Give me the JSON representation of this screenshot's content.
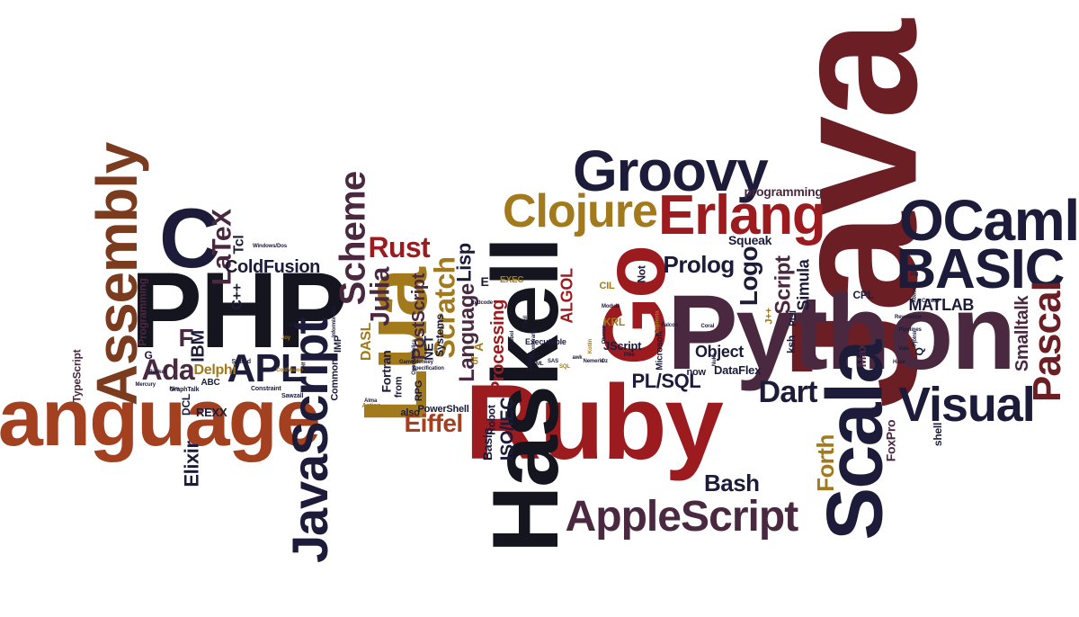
{
  "palette": {
    "navy": "#1c1b3a",
    "black": "#151520",
    "plum": "#4a2940",
    "crimson": "#9b1b1e",
    "rust": "#a3401f",
    "gold": "#a27a1c",
    "maroon": "#6b1f25",
    "brown": "#7a3b1f"
  },
  "words": [
    {
      "id": "java",
      "text": "Java",
      "color": "#6b1f25",
      "icon": "word"
    },
    {
      "id": "python",
      "text": "Python",
      "color": "#4a2940"
    },
    {
      "id": "ruby",
      "text": "Ruby",
      "color": "#9b1b1e"
    },
    {
      "id": "haskell",
      "text": "Haskell",
      "color": "#151520"
    },
    {
      "id": "php",
      "text": "PHP",
      "color": "#151520"
    },
    {
      "id": "go",
      "text": "Go",
      "color": "#9b1b1e"
    },
    {
      "id": "language",
      "text": "language",
      "color": "#a3401f"
    },
    {
      "id": "lua",
      "text": "Lua",
      "color": "#a27a1c"
    },
    {
      "id": "scala",
      "text": "Scala",
      "color": "#1c1b3a"
    },
    {
      "id": "groovy",
      "text": "Groovy",
      "color": "#1c1b3a"
    },
    {
      "id": "erlang",
      "text": "Erlang",
      "color": "#9b1b1e"
    },
    {
      "id": "clojure",
      "text": "Clojure",
      "color": "#a27a1c"
    },
    {
      "id": "ocaml",
      "text": "OCaml",
      "color": "#1c1b3a"
    },
    {
      "id": "basic",
      "text": "BASIC",
      "color": "#1c1b3a"
    },
    {
      "id": "assembly",
      "text": "Assembly",
      "color": "#7a3b1f"
    },
    {
      "id": "c",
      "text": "C",
      "color": "#1c1b3a"
    },
    {
      "id": "javascript",
      "text": "JavaScript",
      "color": "#1c1b3a"
    },
    {
      "id": "applescript",
      "text": "AppleScript",
      "color": "#4a2940"
    },
    {
      "id": "visual",
      "text": "Visual",
      "color": "#1c1b3a"
    },
    {
      "id": "pascal",
      "text": "Pascal",
      "color": "#6b1f25"
    },
    {
      "id": "scheme",
      "text": "Scheme",
      "color": "#4a2940"
    },
    {
      "id": "apl",
      "text": "APL",
      "color": "#1c1b3a"
    },
    {
      "id": "ada",
      "text": "Ada",
      "color": "#4a2940"
    },
    {
      "id": "dart",
      "text": "Dart",
      "color": "#1c1b3a"
    },
    {
      "id": "rust",
      "text": "Rust",
      "color": "#9b1b1e"
    },
    {
      "id": "julia",
      "text": "Julia",
      "color": "#4a2940"
    },
    {
      "id": "latex",
      "text": "LaTeX",
      "color": "#4a2940"
    },
    {
      "id": "scratch",
      "text": "Scratch",
      "color": "#a27a1c"
    },
    {
      "id": "language2",
      "text": "Language",
      "color": "#4a2940"
    },
    {
      "id": "logo",
      "text": "Logo",
      "color": "#1c1b3a"
    },
    {
      "id": "prolog",
      "text": "Prolog",
      "color": "#1c1b3a"
    },
    {
      "id": "eiffel",
      "text": "Eiffel",
      "color": "#a3401f"
    },
    {
      "id": "bash",
      "text": "Bash",
      "color": "#1c1b3a"
    },
    {
      "id": "forth",
      "text": "Forth",
      "color": "#a27a1c"
    },
    {
      "id": "script",
      "text": "Script",
      "color": "#4a2940"
    },
    {
      "id": "pl-sql",
      "text": "PL/SQL",
      "color": "#1c1b3a"
    },
    {
      "id": "lisp",
      "text": "Lisp",
      "color": "#1c1b3a"
    },
    {
      "id": "elixir",
      "text": "Elixir",
      "color": "#1c1b3a"
    },
    {
      "id": "processing",
      "text": "Processing",
      "color": "#9b1b1e"
    },
    {
      "id": "smalltalk",
      "text": "Smalltalk",
      "color": "#4a2940"
    },
    {
      "id": "postscript",
      "text": "PostScript",
      "color": "#4a2940"
    },
    {
      "id": "coldfusion",
      "text": "ColdFusion",
      "color": "#1c1b3a"
    },
    {
      "id": "simula",
      "text": "Simula",
      "color": "#1c1b3a"
    },
    {
      "id": "matlab",
      "text": "MATLAB",
      "color": "#1c1b3a"
    },
    {
      "id": "object",
      "text": "Object",
      "color": "#1c1b3a"
    },
    {
      "id": "programming",
      "text": "programming",
      "color": "#4a2940"
    },
    {
      "id": "squeak",
      "text": "Squeak",
      "color": "#1c1b3a"
    },
    {
      "id": "ibm",
      "text": "IBM",
      "color": "#1c1b3a"
    },
    {
      "id": "f",
      "text": "F",
      "color": "#4a2940"
    },
    {
      "id": "delphi",
      "text": "Delphi",
      "color": "#a27a1c"
    },
    {
      "id": "rexx",
      "text": "REXX",
      "color": "#1c1b3a"
    },
    {
      "id": "tcl",
      "text": "Tcl",
      "color": "#1c1b3a"
    },
    {
      "id": "cpp",
      "text": "C++",
      "color": "#1c1b3a"
    },
    {
      "id": "typescript",
      "text": "TypeScript",
      "color": "#4a2940"
    },
    {
      "id": "programming2",
      "text": "Programming",
      "color": "#4a2940"
    },
    {
      "id": "fortran",
      "text": "Fortran",
      "color": "#1c1b3a"
    },
    {
      "id": "net",
      "text": "NET",
      "color": "#1c1b3a"
    },
    {
      "id": "iso-iec",
      "text": "ISO/IEC",
      "color": "#1c1b3a"
    },
    {
      "id": "algol",
      "text": "ALGOL",
      "color": "#9b1b1e"
    },
    {
      "id": "robot",
      "text": "Robot",
      "color": "#1c1b3a"
    },
    {
      "id": "basic2",
      "text": "Basic",
      "color": "#1c1b3a"
    },
    {
      "id": "systems",
      "text": "Systems",
      "color": "#1c1b3a"
    },
    {
      "id": "dasl",
      "text": "DASL",
      "color": "#a27a1c"
    },
    {
      "id": "jscript",
      "text": "JScript",
      "color": "#1c1b3a"
    },
    {
      "id": "dataflex",
      "text": "DataFlex",
      "color": "#1c1b3a"
    },
    {
      "id": "foxpro",
      "text": "FoxPro",
      "color": "#4a2940"
    },
    {
      "id": "ksh",
      "text": "ksh",
      "color": "#1c1b3a"
    },
    {
      "id": "max",
      "text": "Max",
      "color": "#4a2940"
    },
    {
      "id": "shell",
      "text": "shell",
      "color": "#1c1b3a"
    },
    {
      "id": "cpl",
      "text": "CPL",
      "color": "#1c1b3a"
    },
    {
      "id": "pl-i",
      "text": "PL/I",
      "color": "#1c1b3a"
    },
    {
      "id": "kql",
      "text": "KRL",
      "color": "#a27a1c"
    },
    {
      "id": "cil",
      "text": "CIL",
      "color": "#a27a1c"
    },
    {
      "id": "exec",
      "text": "EXEC",
      "color": "#a27a1c"
    },
    {
      "id": "also",
      "text": "also",
      "color": "#1c1b3a"
    },
    {
      "id": "powershell",
      "text": "PowerShell",
      "color": "#1c1b3a"
    },
    {
      "id": "common",
      "text": "Common",
      "color": "#1c1b3a"
    },
    {
      "id": "imp",
      "text": "IMP",
      "color": "#1c1b3a"
    },
    {
      "id": "dcl",
      "text": "DCL",
      "color": "#1c1b3a"
    },
    {
      "id": "abc",
      "text": "ABC",
      "color": "#1c1b3a"
    },
    {
      "id": "now",
      "text": "now",
      "color": "#1c1b3a"
    },
    {
      "id": "not",
      "text": "Not",
      "color": "#1c1b3a"
    },
    {
      "id": "microsoft",
      "text": "Microsoft",
      "color": "#1c1b3a"
    },
    {
      "id": "jpp",
      "text": "J++",
      "color": "#a27a1c"
    },
    {
      "id": "e",
      "text": "E",
      "color": "#1c1b3a"
    },
    {
      "id": "a",
      "text": "A",
      "color": "#a27a1c"
    },
    {
      "id": "q",
      "text": "Q",
      "color": "#1c1b3a"
    },
    {
      "id": "g",
      "text": "G",
      "color": "#1c1b3a"
    },
    {
      "id": "from",
      "text": "from",
      "color": "#1c1b3a"
    },
    {
      "id": "rpg",
      "text": "RPG",
      "color": "#1c1b3a"
    },
    {
      "id": "of",
      "text": "of",
      "color": "#a27a1c"
    },
    {
      "id": "executable",
      "text": "Executable",
      "color": "#1c1b3a"
    },
    {
      "id": "graphtalk",
      "text": "GraphTalk",
      "color": "#1c1b3a"
    },
    {
      "id": "strand",
      "text": "Strand",
      "color": "#1c1b3a"
    },
    {
      "id": "constraint",
      "text": "Constraint",
      "color": "#1c1b3a"
    },
    {
      "id": "sawzall",
      "text": "Sawzall",
      "color": "#1c1b3a"
    },
    {
      "id": "action",
      "text": "Action",
      "color": "#a27a1c"
    },
    {
      "id": "informix",
      "text": "Informix-4GL",
      "color": "#1c1b3a"
    },
    {
      "id": "windows",
      "text": "Windows/Dos",
      "color": "#1c1b3a"
    },
    {
      "id": "coral",
      "text": "Coral",
      "color": "#1c1b3a"
    },
    {
      "id": "revolution",
      "text": "Revolution",
      "color": "#1c1b3a"
    },
    {
      "id": "pipelines",
      "text": "Pipelines",
      "color": "#1c1b3a"
    },
    {
      "id": "xbase",
      "text": "Xbase",
      "color": "#1c1b3a"
    },
    {
      "id": "nuke",
      "text": "Nuke",
      "color": "#1c1b3a"
    },
    {
      "id": "specification",
      "text": "Specification",
      "color": "#1c1b3a"
    },
    {
      "id": "openmodel",
      "text": "OpenModelica",
      "color": "#1c1b3a"
    },
    {
      "id": "redcode",
      "text": "Redcode",
      "color": "#1c1b3a"
    },
    {
      "id": "gamemonkey",
      "text": "GameMonkey",
      "color": "#1c1b3a"
    },
    {
      "id": "coldvision",
      "text": "ColdVision",
      "color": "#a27a1c"
    },
    {
      "id": "alma",
      "text": "Alma",
      "color": "#1c1b3a"
    },
    {
      "id": "cobol",
      "text": "Cobol",
      "color": "#1c1b3a"
    },
    {
      "id": "fjolnir",
      "text": "Fjölnir",
      "color": "#1c1b3a"
    },
    {
      "id": "tiny-a",
      "text": "Cecil",
      "color": "#1c1b3a"
    },
    {
      "id": "tiny-b",
      "text": "Clipper",
      "color": "#1c1b3a"
    },
    {
      "id": "tiny-c",
      "text": "Kotlin",
      "color": "#a27a1c"
    },
    {
      "id": "tiny-d",
      "text": "Nemerle",
      "color": "#1c1b3a"
    },
    {
      "id": "tiny-e",
      "text": "Boomerang",
      "color": "#1c1b3a"
    },
    {
      "id": "tiny-f",
      "text": "Oberon",
      "color": "#1c1b3a"
    },
    {
      "id": "tiny-g",
      "text": "Modula",
      "color": "#1c1b3a"
    },
    {
      "id": "tiny-h",
      "text": "Oz",
      "color": "#1c1b3a"
    },
    {
      "id": "tiny-i",
      "text": "Pike",
      "color": "#1c1b3a"
    },
    {
      "id": "tiny-j",
      "text": "Euphoria",
      "color": "#a27a1c"
    },
    {
      "id": "tiny-k",
      "text": "Falcon",
      "color": "#1c1b3a"
    },
    {
      "id": "tiny-l",
      "text": "Io",
      "color": "#1c1b3a"
    },
    {
      "id": "tiny-m",
      "text": "Self",
      "color": "#1c1b3a"
    },
    {
      "id": "tiny-n",
      "text": "Icon",
      "color": "#1c1b3a"
    },
    {
      "id": "tiny-o",
      "text": "Joy",
      "color": "#a27a1c"
    },
    {
      "id": "tiny-p",
      "text": "Mercury",
      "color": "#1c1b3a"
    },
    {
      "id": "tiny-q",
      "text": "Nim",
      "color": "#1c1b3a"
    },
    {
      "id": "tiny-r",
      "text": "Racket",
      "color": "#1c1b3a"
    },
    {
      "id": "tiny-s",
      "text": "Vala",
      "color": "#1c1b3a"
    },
    {
      "id": "tiny-t",
      "text": "Zig",
      "color": "#1c1b3a"
    },
    {
      "id": "tiny-u",
      "text": "Crystal",
      "color": "#1c1b3a"
    },
    {
      "id": "tiny-v",
      "text": "Haxe",
      "color": "#1c1b3a"
    },
    {
      "id": "tiny-w",
      "text": "ML",
      "color": "#1c1b3a"
    },
    {
      "id": "tiny-x",
      "text": "SAS",
      "color": "#1c1b3a"
    },
    {
      "id": "tiny-y",
      "text": "SQL",
      "color": "#a27a1c"
    },
    {
      "id": "tiny-z",
      "text": "awk",
      "color": "#1c1b3a"
    }
  ]
}
